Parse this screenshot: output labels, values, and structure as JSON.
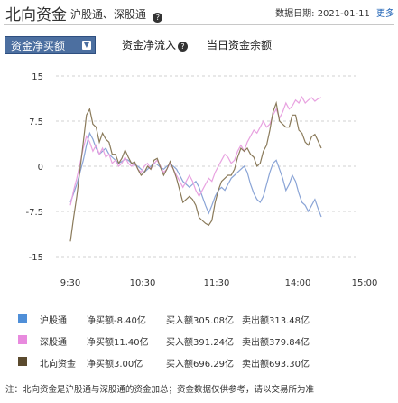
{
  "header": {
    "title": "北向资金",
    "subtitle": "沪股通、深股通",
    "date_label": "数据日期:",
    "date_value": "2021-01-11",
    "more": "更多"
  },
  "tabs": [
    {
      "label": "资金净买额",
      "active": true
    },
    {
      "label": "资金净流入",
      "active": false
    },
    {
      "label": "当日资金余额",
      "active": false
    }
  ],
  "chart_data": {
    "type": "line",
    "y_ticks": [
      "15",
      "7.5",
      "0",
      "-7.5",
      "-15"
    ],
    "x_ticks": [
      "9:30",
      "10:30",
      "11:30",
      "14:00",
      "15:00"
    ],
    "ylim": [
      -15,
      15
    ],
    "grid": "horizontal-dashed",
    "series": [
      {
        "name": "沪股通",
        "color": "#8aa4d6",
        "values": [
          -6.0,
          -4.5,
          -3.0,
          -1.0,
          1.0,
          3.5,
          5.5,
          4.5,
          3.0,
          2.0,
          2.5,
          3.0,
          2.0,
          1.5,
          1.0,
          0.5,
          0.8,
          1.2,
          1.0,
          0.5,
          0.2,
          0.0,
          -0.5,
          -1.0,
          -0.5,
          0.0,
          0.5,
          0.3,
          -0.2,
          -0.5,
          0.0,
          0.3,
          0.0,
          -0.5,
          -1.5,
          -2.5,
          -3.0,
          -3.5,
          -3.0,
          -2.5,
          -3.5,
          -5.0,
          -6.5,
          -7.8,
          -6.5,
          -5.0,
          -4.0,
          -3.5,
          -4.0,
          -3.0,
          -2.0,
          -1.5,
          -1.0,
          -0.5,
          0.0,
          -1.0,
          -3.0,
          -4.5,
          -5.5,
          -6.0,
          -5.0,
          -3.0,
          -1.0,
          0.5,
          1.0,
          -0.5,
          -2.0,
          -4.0,
          -3.0,
          -1.5,
          -2.5,
          -4.5,
          -6.0,
          -6.5,
          -7.5,
          -6.5,
          -5.5,
          -7.0,
          -8.4
        ]
      },
      {
        "name": "深股通",
        "color": "#e8a2e0",
        "values": [
          -6.5,
          -4.0,
          -2.0,
          0.5,
          3.0,
          5.0,
          4.0,
          2.5,
          3.5,
          2.0,
          3.0,
          1.5,
          2.0,
          0.5,
          1.0,
          0.0,
          0.5,
          1.5,
          0.5,
          0.0,
          0.5,
          -0.5,
          -1.0,
          0.0,
          0.5,
          -0.5,
          0.5,
          1.0,
          0.0,
          -1.0,
          -0.5,
          0.5,
          -0.5,
          -1.5,
          -2.5,
          -3.5,
          -2.5,
          -1.5,
          -2.5,
          -4.0,
          -5.0,
          -4.0,
          -3.0,
          -2.0,
          -2.5,
          -1.0,
          0.0,
          1.0,
          2.0,
          1.5,
          0.5,
          1.0,
          2.5,
          3.5,
          2.5,
          4.0,
          5.0,
          6.0,
          5.5,
          6.5,
          7.5,
          6.5,
          7.0,
          8.5,
          9.5,
          8.0,
          9.0,
          10.5,
          9.5,
          10.0,
          11.0,
          10.5,
          11.5,
          10.5,
          11.0,
          11.4,
          10.8,
          11.2,
          11.4
        ]
      },
      {
        "name": "北向资金",
        "color": "#8a7a5a",
        "values": [
          -12.5,
          -8.5,
          -5.0,
          -0.5,
          4.0,
          8.5,
          9.5,
          7.0,
          6.5,
          4.0,
          5.5,
          4.5,
          4.0,
          2.0,
          2.0,
          0.5,
          1.3,
          2.7,
          1.5,
          0.5,
          0.7,
          -0.5,
          -1.5,
          -1.0,
          0.0,
          -0.5,
          1.0,
          1.3,
          -0.2,
          -1.5,
          -0.5,
          0.8,
          -0.5,
          -2.0,
          -4.0,
          -6.0,
          -5.5,
          -5.0,
          -5.5,
          -6.5,
          -8.5,
          -9.0,
          -9.5,
          -9.8,
          -9.0,
          -6.0,
          -4.0,
          -2.5,
          -2.0,
          -1.5,
          -1.5,
          -0.5,
          1.5,
          3.0,
          2.5,
          3.0,
          2.0,
          1.5,
          0.0,
          0.5,
          2.5,
          3.5,
          6.0,
          9.0,
          10.5,
          7.5,
          7.0,
          6.5,
          6.5,
          8.5,
          8.5,
          6.0,
          5.5,
          4.0,
          3.5,
          4.9,
          5.3,
          4.2,
          3.0
        ]
      }
    ]
  },
  "legend": [
    {
      "name": "沪股通",
      "color": "#4f8fd8",
      "net": "净买额-8.40亿",
      "buy": "买入额305.08亿",
      "sell": "卖出额313.48亿"
    },
    {
      "name": "深股通",
      "color": "#e88ade",
      "net": "净买额11.40亿",
      "buy": "买入额391.24亿",
      "sell": "卖出额379.84亿"
    },
    {
      "name": "北向资金",
      "color": "#5b4a2e",
      "net": "净买额3.00亿",
      "buy": "买入额696.29亿",
      "sell": "卖出额693.30亿"
    }
  ],
  "note": "注：北向资金是沪股通与深股通的资金加总；资金数据仅供参考，请以交易所为准"
}
